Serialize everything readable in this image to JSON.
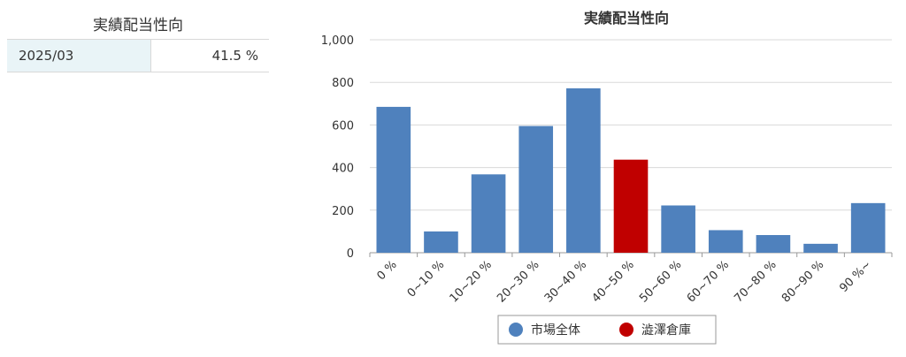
{
  "panel": {
    "title": "実績配当性向",
    "rows": [
      {
        "period": "2025/03",
        "value": "41.5 %"
      }
    ]
  },
  "colors": {
    "market": "#4f81bd",
    "company": "#c00000",
    "grid": "#d9d9d9",
    "axis": "#999999"
  },
  "chart_data": {
    "type": "bar",
    "title": "実績配当性向",
    "categories": [
      "0 %",
      "0~10 %",
      "10~20 %",
      "20~30 %",
      "30~40 %",
      "40~50 %",
      "50~60 %",
      "60~70 %",
      "70~80 %",
      "80~90 %",
      "90 %~"
    ],
    "values": [
      685,
      100,
      368,
      595,
      772,
      437,
      222,
      106,
      83,
      42,
      233
    ],
    "highlight_index": 5,
    "ylim": [
      0,
      1000
    ],
    "yticks": [
      0,
      200,
      400,
      600,
      800,
      1000
    ],
    "ytick_labels": [
      "0",
      "200",
      "400",
      "600",
      "800",
      "1,000"
    ],
    "grid": true,
    "legend_position": "bottom",
    "legend": [
      {
        "name": "市場全体",
        "color": "#4f81bd"
      },
      {
        "name": "澁澤倉庫",
        "color": "#c00000"
      }
    ]
  }
}
